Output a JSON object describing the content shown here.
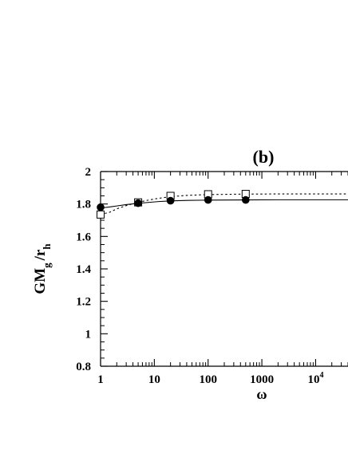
{
  "chart_data": {
    "type": "scatter",
    "panel_label": "(b)",
    "xlabel": "ω",
    "ylabel": {
      "main": "GM",
      "sub1": "g",
      "mid": "/r",
      "sub2": "h"
    },
    "x_scale": "log",
    "xlim": [
      1,
      40000
    ],
    "ylim": [
      0.8,
      2.0
    ],
    "x_ticks": [
      {
        "value": 1,
        "label": "1"
      },
      {
        "value": 10,
        "label": "10"
      },
      {
        "value": 100,
        "label": "100"
      },
      {
        "value": 1000,
        "label": "1000"
      },
      {
        "value": 10000,
        "label": "10",
        "sup": "4"
      }
    ],
    "y_ticks": [
      {
        "value": 0.8,
        "label": "0.8"
      },
      {
        "value": 1.0,
        "label": "1"
      },
      {
        "value": 1.2,
        "label": "1.2"
      },
      {
        "value": 1.4,
        "label": "1.4"
      },
      {
        "value": 1.6,
        "label": "1.6"
      },
      {
        "value": 1.8,
        "label": "1.8"
      },
      {
        "value": 2.0,
        "label": "2"
      }
    ],
    "grid": false,
    "series": [
      {
        "marker": "open-square",
        "line": "dotted",
        "color": "#000000",
        "x": [
          1,
          5,
          20,
          100,
          500
        ],
        "y": [
          1.735,
          1.81,
          1.85,
          1.86,
          1.862
        ],
        "curve_x": [
          1,
          1.5,
          2,
          3,
          5,
          8,
          12,
          20,
          40,
          100,
          500,
          2000,
          10000,
          40000
        ],
        "curve_y": [
          1.735,
          1.75,
          1.77,
          1.79,
          1.81,
          1.825,
          1.835,
          1.845,
          1.853,
          1.858,
          1.861,
          1.862,
          1.862,
          1.862
        ]
      },
      {
        "marker": "filled-circle",
        "line": "solid",
        "color": "#000000",
        "x": [
          1,
          5,
          20,
          100,
          500
        ],
        "y": [
          1.78,
          1.805,
          1.82,
          1.825,
          1.825
        ],
        "curve_x": [
          1,
          1.5,
          2,
          3,
          5,
          8,
          12,
          20,
          40,
          100,
          500,
          2000,
          10000,
          40000
        ],
        "curve_y": [
          1.775,
          1.782,
          1.788,
          1.796,
          1.804,
          1.81,
          1.815,
          1.819,
          1.822,
          1.824,
          1.825,
          1.826,
          1.826,
          1.826
        ]
      }
    ]
  }
}
